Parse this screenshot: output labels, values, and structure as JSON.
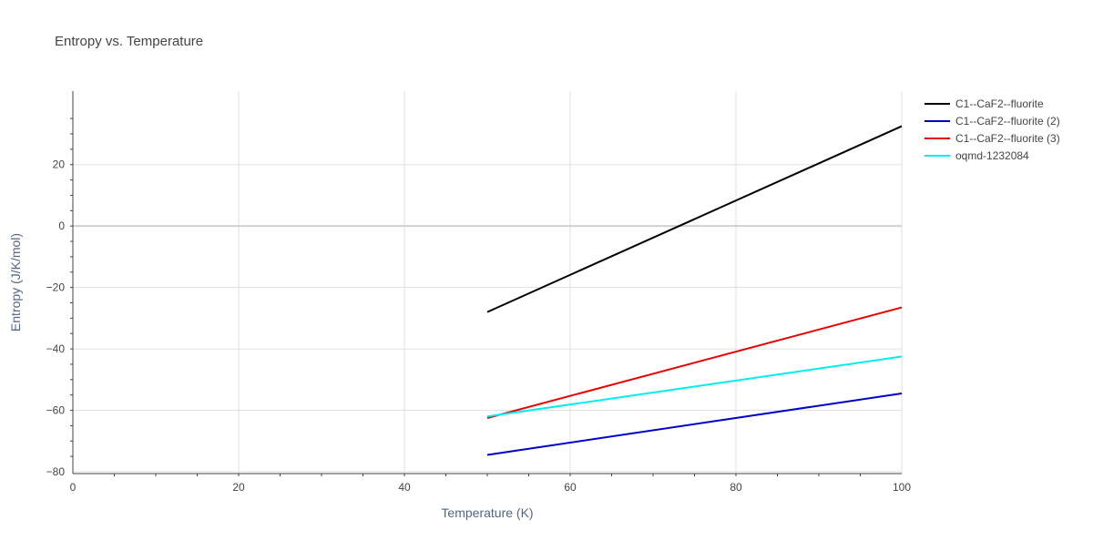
{
  "chart_data": {
    "type": "line",
    "title": "Entropy vs. Temperature",
    "xlabel": "Temperature (K)",
    "ylabel": "Entropy (J/K/mol)",
    "xlim": [
      0,
      100
    ],
    "ylim": [
      -80,
      38
    ],
    "x_ticks": [
      0,
      20,
      40,
      60,
      80,
      100
    ],
    "y_ticks": [
      -80,
      -60,
      -40,
      -20,
      0,
      20
    ],
    "grid": true,
    "legend_position": "top-right",
    "series": [
      {
        "name": "C1--CaF2--fluorite",
        "color": "#000000",
        "x": [
          50,
          100
        ],
        "y": [
          -28,
          32.5
        ]
      },
      {
        "name": "C1--CaF2--fluorite (2)",
        "color": "#0000cc",
        "x": [
          50,
          100
        ],
        "y": [
          -74.5,
          -54.5
        ]
      },
      {
        "name": "C1--CaF2--fluorite (3)",
        "color": "#ee0000",
        "x": [
          50,
          100
        ],
        "y": [
          -62.5,
          -26.5
        ]
      },
      {
        "name": "oqmd-1232084",
        "color": "#00eeee",
        "x": [
          50,
          100
        ],
        "y": [
          -62,
          -42.5
        ]
      }
    ]
  }
}
